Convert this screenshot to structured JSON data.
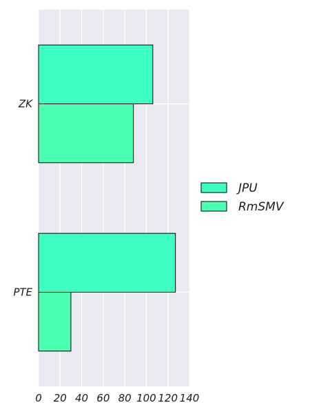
{
  "chart_data": {
    "type": "bar",
    "orientation": "horizontal",
    "categories": [
      "ZK",
      "PTE"
    ],
    "series": [
      {
        "name": "JPU",
        "values": [
          106,
          127
        ],
        "color": "#3dffc4"
      },
      {
        "name": "RmSMV",
        "values": [
          88,
          30
        ],
        "color": "#4dffb0"
      }
    ],
    "xlim": [
      0,
      140
    ],
    "xticks": [
      0,
      20,
      40,
      60,
      80,
      100,
      120,
      140
    ],
    "grid": true,
    "legend_position": "right",
    "background": "#e9e9f2",
    "title": "",
    "xlabel": "",
    "ylabel": ""
  }
}
